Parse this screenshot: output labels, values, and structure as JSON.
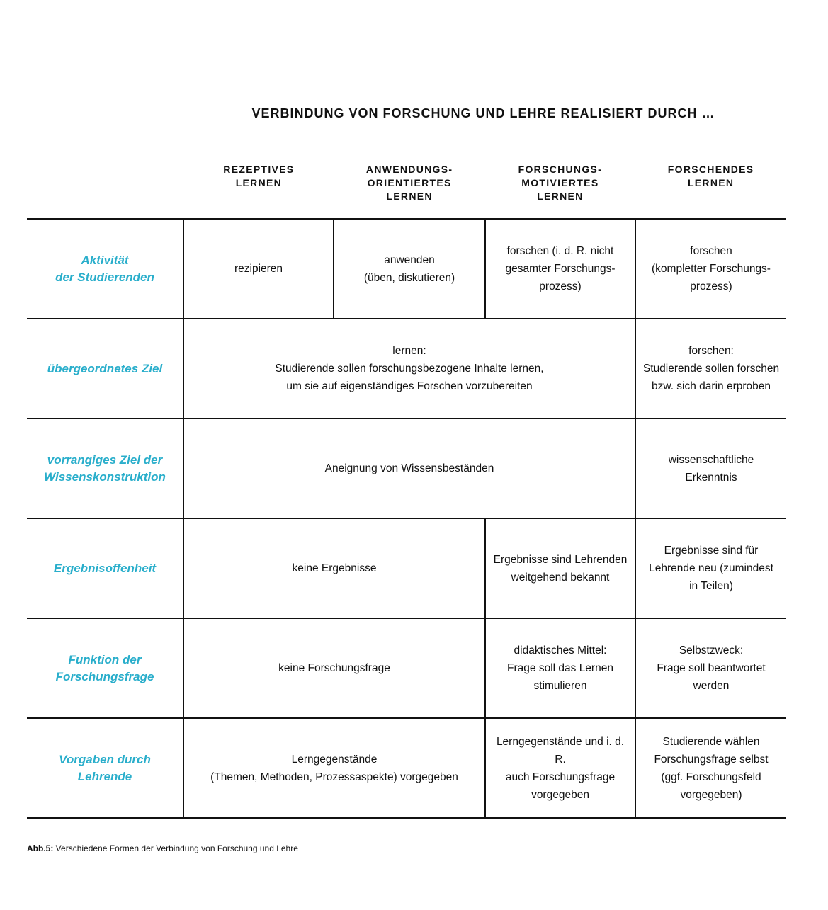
{
  "title": "VERBINDUNG VON FORSCHUNG UND LEHRE REALISIERT DURCH …",
  "columns": [
    "REZEPTIVES\nLERNEN",
    "ANWENDUNGS-\nORIENTIERTES\nLERNEN",
    "FORSCHUNGS-\nMOTIVIERTES\nLERNEN",
    "FORSCHENDES\nLERNEN"
  ],
  "rows": [
    {
      "label": "Aktivität\nder Studierenden",
      "cells": [
        "rezipieren",
        "anwenden\n(üben, diskutieren)",
        "forschen (i. d. R. nicht\ngesamter Forschungs-\nprozess)",
        "forschen\n(kompletter Forschungs-\nprozess)"
      ]
    },
    {
      "label": "übergeordnetes Ziel",
      "cells": [
        "lernen:\nStudierende sollen forschungsbezogene Inhalte lernen,\num sie auf eigenständiges Forschen vorzubereiten",
        "forschen:\nStudierende sollen forschen\nbzw. sich darin erproben"
      ]
    },
    {
      "label": "vorrangiges Ziel der\nWissenskonstruktion",
      "cells": [
        "Aneignung von Wissensbeständen",
        "wissenschaftliche\nErkenntnis"
      ]
    },
    {
      "label": "Ergebnisoffenheit",
      "cells": [
        "keine Ergebnisse",
        "Ergebnisse sind Lehrenden\nweitgehend bekannt",
        "Ergebnisse sind für\nLehrende neu (zumindest\nin Teilen)"
      ]
    },
    {
      "label": "Funktion der\nForschungsfrage",
      "cells": [
        "keine Forschungsfrage",
        "didaktisches Mittel:\nFrage soll das Lernen\nstimulieren",
        "Selbstzweck:\nFrage soll beantwortet\nwerden"
      ]
    },
    {
      "label": "Vorgaben durch\nLehrende",
      "cells": [
        "Lerngegenstände\n(Themen, Methoden, Prozessaspekte) vorgegeben",
        "Lerngegenstände und i. d. R.\nauch Forschungsfrage\nvorgegeben",
        "Studierende wählen\nForschungsfrage selbst\n(ggf. Forschungsfeld\nvorgegeben)"
      ]
    }
  ],
  "caption": {
    "label": "Abb.5:",
    "text": " Verschiedene Formen der Verbindung von Forschung und Lehre"
  },
  "colors": {
    "label": "#29aecb",
    "text": "#111111"
  }
}
